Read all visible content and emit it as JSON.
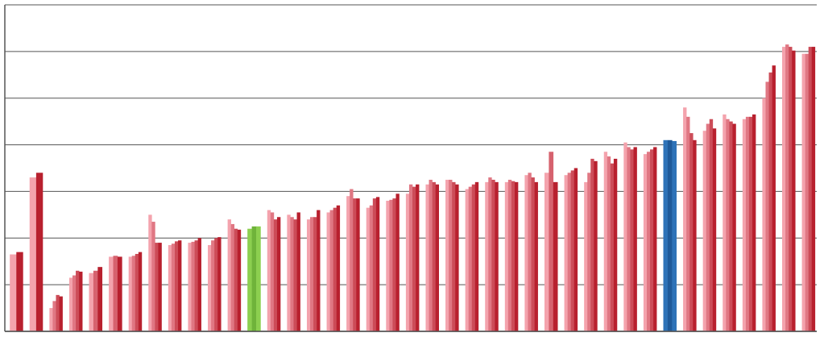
{
  "chart_data": {
    "type": "bar",
    "title": "",
    "xlabel": "",
    "ylabel": "",
    "ylim": [
      0,
      7
    ],
    "grid": true,
    "legend": "none",
    "colors": {
      "light": "#f4a3ad",
      "dark": "#b8202e",
      "highlight_green": "#8ccf4f",
      "highlight_blue": "#2e73b8",
      "grid": "#555555"
    },
    "groups": [
      {
        "values": [
          1.65,
          1.7
        ],
        "highlight": ""
      },
      {
        "values": [
          3.3,
          3.4
        ],
        "highlight": ""
      },
      {
        "values": [
          0.5,
          0.65,
          0.78,
          0.75
        ],
        "highlight": ""
      },
      {
        "values": [
          1.15,
          1.2,
          1.3,
          1.28
        ],
        "highlight": ""
      },
      {
        "values": [
          1.25,
          1.3,
          1.38
        ],
        "highlight": ""
      },
      {
        "values": [
          1.6,
          1.62,
          1.6
        ],
        "highlight": ""
      },
      {
        "values": [
          1.6,
          1.62,
          1.66,
          1.7
        ],
        "highlight": ""
      },
      {
        "values": [
          2.5,
          2.35,
          1.9,
          1.9
        ],
        "highlight": ""
      },
      {
        "values": [
          1.85,
          1.88,
          1.93,
          1.95
        ],
        "highlight": ""
      },
      {
        "values": [
          1.9,
          1.92,
          1.95,
          2.0
        ],
        "highlight": ""
      },
      {
        "values": [
          1.85,
          1.95,
          2.0,
          2.02
        ],
        "highlight": ""
      },
      {
        "values": [
          2.4,
          2.3,
          2.2,
          2.18
        ],
        "highlight": ""
      },
      {
        "values": [
          2.2,
          2.25,
          2.25
        ],
        "highlight": "green"
      },
      {
        "values": [
          2.6,
          2.55,
          2.4,
          2.45
        ],
        "highlight": ""
      },
      {
        "values": [
          2.5,
          2.45,
          2.4,
          2.55
        ],
        "highlight": ""
      },
      {
        "values": [
          2.4,
          2.45,
          2.45,
          2.6
        ],
        "highlight": ""
      },
      {
        "values": [
          2.55,
          2.6,
          2.65,
          2.7
        ],
        "highlight": ""
      },
      {
        "values": [
          2.9,
          3.05,
          2.85,
          2.85
        ],
        "highlight": ""
      },
      {
        "values": [
          2.65,
          2.7,
          2.85,
          2.88
        ],
        "highlight": ""
      },
      {
        "values": [
          2.8,
          2.82,
          2.85,
          2.95
        ],
        "highlight": ""
      },
      {
        "values": [
          2.95,
          3.15,
          3.1,
          3.15
        ],
        "highlight": ""
      },
      {
        "values": [
          3.15,
          3.25,
          3.2,
          3.15
        ],
        "highlight": ""
      },
      {
        "values": [
          3.25,
          3.25,
          3.2,
          3.15
        ],
        "highlight": ""
      },
      {
        "values": [
          3.05,
          3.1,
          3.15,
          3.2
        ],
        "highlight": ""
      },
      {
        "values": [
          3.2,
          3.3,
          3.25,
          3.2
        ],
        "highlight": ""
      },
      {
        "values": [
          3.2,
          3.25,
          3.22,
          3.2
        ],
        "highlight": ""
      },
      {
        "values": [
          3.35,
          3.4,
          3.3,
          3.2
        ],
        "highlight": ""
      },
      {
        "values": [
          3.4,
          3.85,
          3.2
        ],
        "highlight": ""
      },
      {
        "values": [
          3.35,
          3.4,
          3.45,
          3.5
        ],
        "highlight": ""
      },
      {
        "values": [
          3.2,
          3.4,
          3.7,
          3.65
        ],
        "highlight": ""
      },
      {
        "values": [
          3.85,
          3.75,
          3.6,
          3.7
        ],
        "highlight": ""
      },
      {
        "values": [
          4.05,
          3.95,
          3.9,
          3.95
        ],
        "highlight": ""
      },
      {
        "values": [
          3.8,
          3.85,
          3.9,
          3.95
        ],
        "highlight": ""
      },
      {
        "values": [
          4.1,
          4.1,
          4.08
        ],
        "highlight": "blue"
      },
      {
        "values": [
          4.8,
          4.6,
          4.25,
          4.1
        ],
        "highlight": ""
      },
      {
        "values": [
          4.3,
          4.45,
          4.55,
          4.35
        ],
        "highlight": ""
      },
      {
        "values": [
          4.65,
          4.55,
          4.5,
          4.45
        ],
        "highlight": ""
      },
      {
        "values": [
          4.55,
          4.6,
          4.6,
          4.65
        ],
        "highlight": ""
      },
      {
        "values": [
          5.0,
          5.35,
          5.55,
          5.7
        ],
        "highlight": ""
      },
      {
        "values": [
          6.1,
          6.15,
          6.1,
          6.02
        ],
        "highlight": ""
      },
      {
        "values": [
          5.95,
          5.95,
          6.1,
          6.1
        ],
        "highlight": ""
      }
    ]
  }
}
